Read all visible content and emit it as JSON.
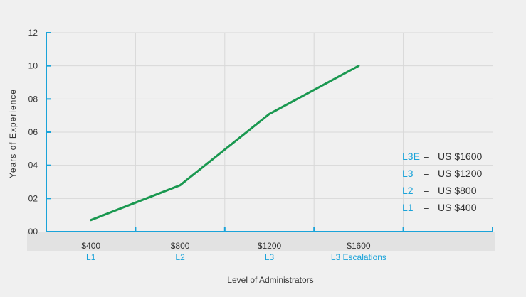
{
  "chart_data": {
    "type": "line",
    "title": "",
    "xlabel": "Level of Administrators",
    "ylabel": "Years of Experience",
    "ylim": [
      0,
      12
    ],
    "x_range": [
      0,
      5
    ],
    "y_ticks": [
      "00",
      "02",
      "04",
      "06",
      "08",
      "10",
      "12"
    ],
    "categories": [
      {
        "x": 0.5,
        "price": "$400",
        "level": "L1"
      },
      {
        "x": 1.5,
        "price": "$800",
        "level": "L2"
      },
      {
        "x": 2.5,
        "price": "$1200",
        "level": "L3"
      },
      {
        "x": 3.5,
        "price": "$1600",
        "level": "L3 Escalations"
      }
    ],
    "series": [
      {
        "x": [
          0.5,
          1.5,
          2.5,
          3.5
        ],
        "values": [
          0.7,
          2.8,
          7.1,
          10.0
        ],
        "color": "#1a9850"
      }
    ],
    "legend": {
      "placement": "right",
      "items": [
        {
          "code": "L3E",
          "dash": "–",
          "price": "US $1600"
        },
        {
          "code": "L3",
          "dash": "–",
          "price": "US $1200"
        },
        {
          "code": "L2",
          "dash": "–",
          "price": "US $800"
        },
        {
          "code": "L1",
          "dash": "–",
          "price": "US $400"
        }
      ]
    },
    "grid": true,
    "colors": {
      "axis": "#1aa3d9",
      "accent_text": "#1aa3d9",
      "line": "#1a9850",
      "grid": "#d8d8d8",
      "category_band": "#e2e2e2"
    }
  }
}
